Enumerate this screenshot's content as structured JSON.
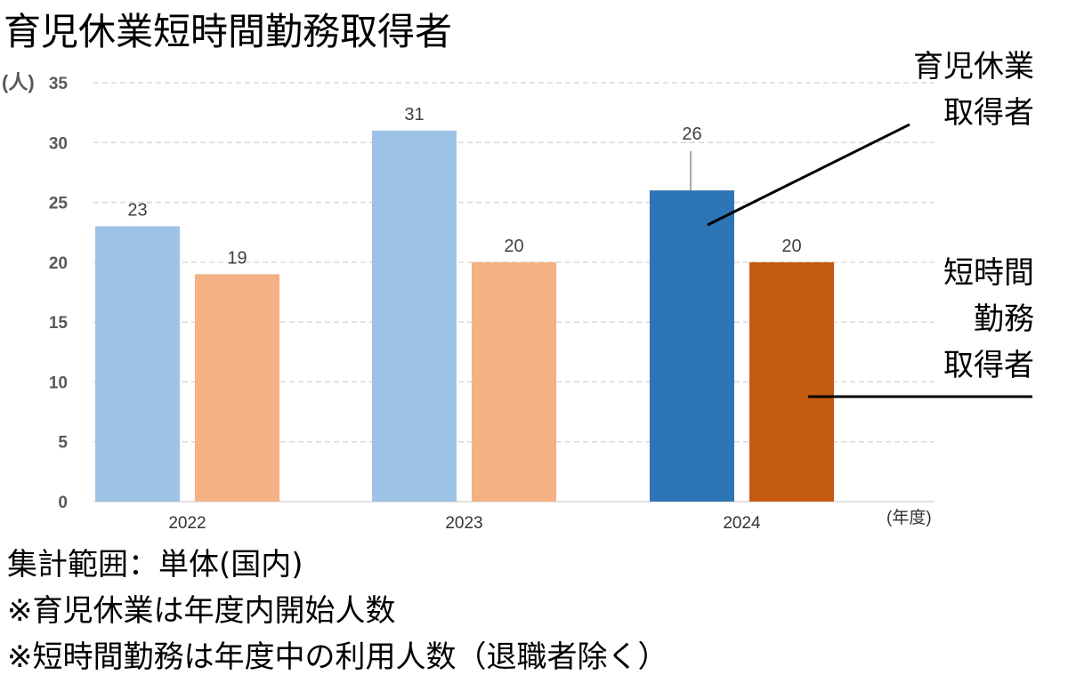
{
  "chart_data": {
    "type": "bar",
    "title": "育児休業短時間勤務取得者",
    "ylabel": "(人)",
    "xlabel": "(年度)",
    "ylim": [
      0,
      35
    ],
    "yticks": [
      "0",
      "5",
      "10",
      "15",
      "20",
      "25",
      "30",
      "35"
    ],
    "grid": true,
    "categories": [
      "2022",
      "2023",
      "2024"
    ],
    "series": [
      {
        "name": "育児休業取得者",
        "label_lines": [
          "育児休業",
          "取得者"
        ],
        "values": [
          23,
          31,
          26
        ],
        "colors": [
          "#9DC3E6",
          "#9DC3E6",
          "#2E75B6"
        ]
      },
      {
        "name": "短時間勤務取得者",
        "label_lines": [
          "短時間",
          "勤務",
          "取得者"
        ],
        "values": [
          19,
          20,
          20
        ],
        "colors": [
          "#F4B183",
          "#F4B183",
          "#C55A11"
        ]
      }
    ]
  },
  "notes": [
    "集計範囲：単体(国内)",
    "※育児休業は年度内開始人数",
    "※短時間勤務は年度中の利用人数（退職者除く）"
  ]
}
